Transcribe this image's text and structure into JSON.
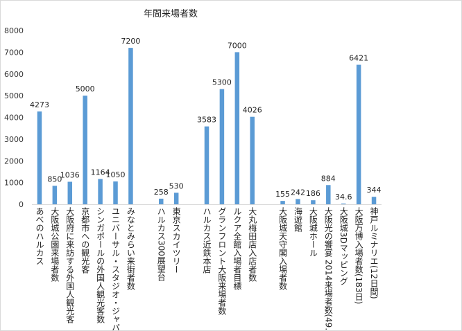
{
  "chart_data": {
    "type": "bar",
    "title": "年間来場者数",
    "xlabel": "",
    "ylabel": "",
    "ylim": [
      0,
      8000
    ],
    "yticks": [
      0,
      1000,
      2000,
      3000,
      4000,
      5000,
      6000,
      7000,
      8000
    ],
    "grid": false,
    "legend": "none",
    "color": "#5B9BD5",
    "categories": [
      "あべのハルカス",
      "大阪城公園来場者数",
      "大阪府に来訪する外国人観光客",
      "京都市への観光客",
      "シンガポールの外国人観光客数",
      "ユニバーサル・スタジオ・ジャパン",
      "みなとみらい来街者数",
      "",
      "ハルカス300展望台",
      "東京スカイツリー",
      "",
      "ハルカス近鉄本店",
      "グランフロント大阪来場者数",
      "ルクア全館入場者目標",
      "大丸梅田店入店者数",
      "",
      "大阪城天守閣入場者数",
      "海遊館",
      "大阪城ホール",
      "大阪光の饗宴 2014来場者数(49…",
      "大阪城3Dマッピング",
      "大阪万博入場者数(183日)",
      "神戸ルミナリエ(12日間)"
    ],
    "values": [
      4273,
      850,
      1036,
      5000,
      1164,
      1050,
      7200,
      null,
      258,
      530,
      null,
      3583,
      5300,
      7000,
      4026,
      null,
      155,
      242,
      186,
      884,
      34.6,
      6421,
      344
    ]
  }
}
